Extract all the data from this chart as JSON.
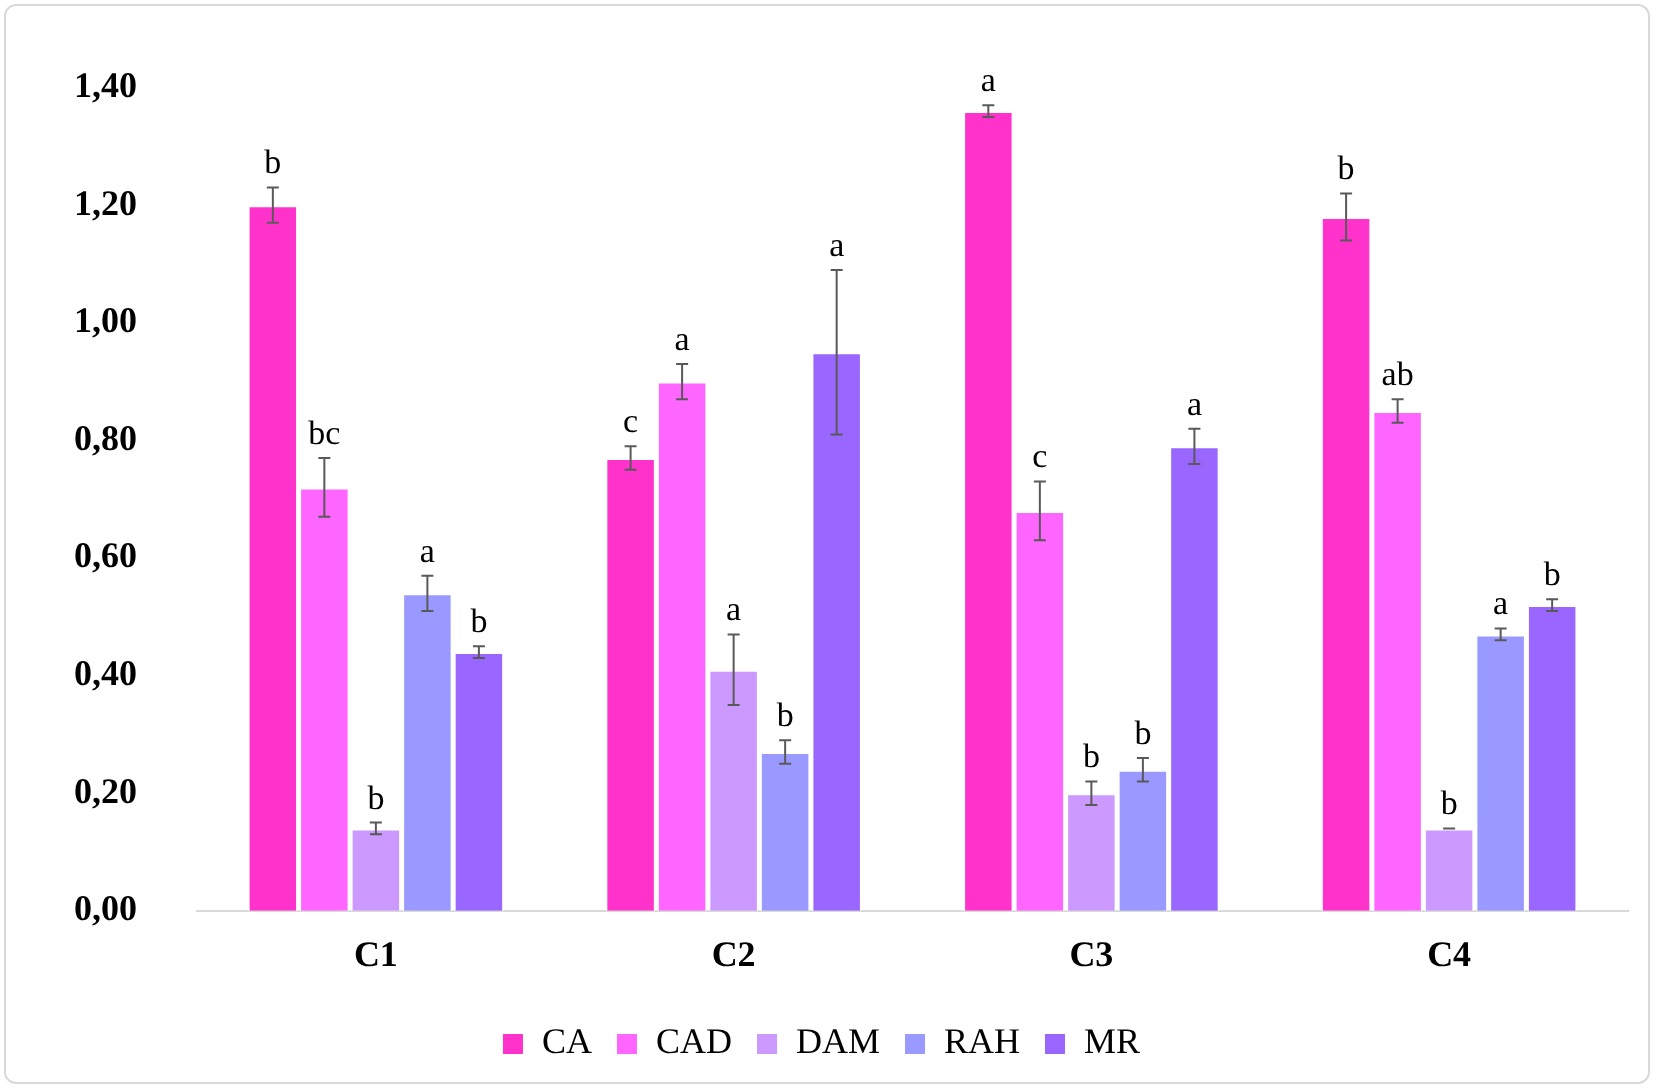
{
  "chart_data": {
    "type": "bar",
    "categories": [
      "C1",
      "C2",
      "C3",
      "C4"
    ],
    "series": [
      {
        "name": "CA",
        "color": "#ff33cc",
        "values": [
          1.2,
          0.77,
          1.36,
          1.18
        ],
        "errors": [
          0.03,
          0.02,
          0.01,
          0.04
        ],
        "value_labels": [
          "b",
          "c",
          "a",
          "b"
        ]
      },
      {
        "name": "CAD",
        "color": "#ff66ff",
        "values": [
          0.72,
          0.9,
          0.68,
          0.85
        ],
        "errors": [
          0.05,
          0.03,
          0.05,
          0.02
        ],
        "value_labels": [
          "bc",
          "a",
          "c",
          "ab"
        ]
      },
      {
        "name": "DAM",
        "color": "#cc99ff",
        "values": [
          0.14,
          0.41,
          0.2,
          0.14
        ],
        "errors": [
          0.01,
          0.06,
          0.02,
          0.0
        ],
        "value_labels": [
          "b",
          "a",
          "b",
          "b"
        ]
      },
      {
        "name": "RAH",
        "color": "#9999ff",
        "values": [
          0.54,
          0.27,
          0.24,
          0.47
        ],
        "errors": [
          0.03,
          0.02,
          0.02,
          0.01
        ],
        "value_labels": [
          "a",
          "b",
          "b",
          "a"
        ]
      },
      {
        "name": "MR",
        "color": "#9966ff",
        "values": [
          0.44,
          0.95,
          0.79,
          0.52
        ],
        "errors": [
          0.01,
          0.14,
          0.03,
          0.01
        ],
        "value_labels": [
          "b",
          "a",
          "a",
          "b"
        ]
      }
    ],
    "ylim": [
      0,
      1.4
    ],
    "yticks": [
      {
        "value": 0,
        "label": "0,00"
      },
      {
        "value": 0.2,
        "label": "0,20"
      },
      {
        "value": 0.4,
        "label": "0,40"
      },
      {
        "value": 0.6,
        "label": "0,60"
      },
      {
        "value": 0.8,
        "label": "0,80"
      },
      {
        "value": 1.0,
        "label": "1,00"
      },
      {
        "value": 1.2,
        "label": "1,20"
      },
      {
        "value": 1.4,
        "label": "1,40"
      }
    ],
    "grid": false,
    "legend": "bottom"
  }
}
